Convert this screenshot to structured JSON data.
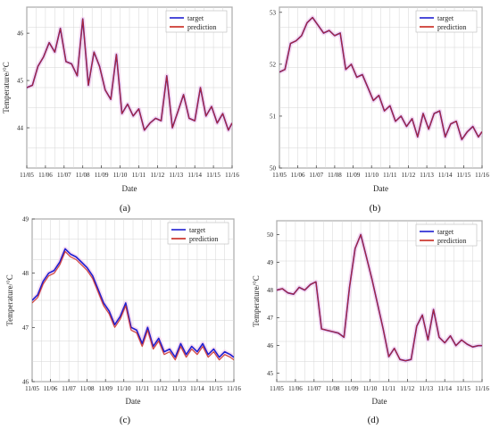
{
  "chart_data": [
    {
      "panel_label": "(a)",
      "type": "line",
      "xlabel": "Date",
      "ylabel": "Temperature/°C",
      "x_ticks": [
        "11/05",
        "11/06",
        "11/07",
        "11/08",
        "11/09",
        "11/10",
        "11/11",
        "11/12",
        "11/13",
        "11/14",
        "11/15",
        "11/16"
      ],
      "y_ticks": [
        44,
        45,
        46
      ],
      "ylim": [
        43.15,
        46.55
      ],
      "grid": true,
      "legend": {
        "position": "top-right",
        "entries": [
          "target",
          "prediction"
        ]
      },
      "series": [
        {
          "name": "target",
          "color": "#1f1fd0",
          "x": [
            0,
            0.3,
            0.6,
            0.9,
            1.2,
            1.5,
            1.8,
            2.1,
            2.4,
            2.7,
            3.0,
            3.3,
            3.6,
            3.9,
            4.2,
            4.5,
            4.8,
            5.1,
            5.4,
            5.7,
            6.0,
            6.3,
            6.6,
            6.9,
            7.2,
            7.5,
            7.8,
            8.1,
            8.4,
            8.7,
            9.0,
            9.3,
            9.6,
            9.9,
            10.2,
            10.5,
            10.8,
            11.0
          ],
          "y": [
            44.85,
            44.9,
            45.3,
            45.5,
            45.8,
            45.6,
            46.1,
            45.4,
            45.35,
            45.1,
            46.3,
            44.9,
            45.6,
            45.3,
            44.8,
            44.6,
            45.55,
            44.3,
            44.5,
            44.25,
            44.4,
            43.95,
            44.1,
            44.2,
            44.15,
            45.1,
            44.0,
            44.35,
            44.7,
            44.2,
            44.15,
            44.85,
            44.25,
            44.45,
            44.1,
            44.3,
            43.95,
            44.1
          ]
        },
        {
          "name": "prediction",
          "color": "#c8281e",
          "x": [
            0,
            0.3,
            0.6,
            0.9,
            1.2,
            1.5,
            1.8,
            2.1,
            2.4,
            2.7,
            3.0,
            3.3,
            3.6,
            3.9,
            4.2,
            4.5,
            4.8,
            5.1,
            5.4,
            5.7,
            6.0,
            6.3,
            6.6,
            6.9,
            7.2,
            7.5,
            7.8,
            8.1,
            8.4,
            8.7,
            9.0,
            9.3,
            9.6,
            9.9,
            10.2,
            10.5,
            10.8,
            11.0
          ],
          "y": [
            44.85,
            44.9,
            45.3,
            45.5,
            45.8,
            45.6,
            46.1,
            45.4,
            45.35,
            45.1,
            46.3,
            44.9,
            45.6,
            45.3,
            44.8,
            44.6,
            45.55,
            44.3,
            44.5,
            44.25,
            44.4,
            43.95,
            44.1,
            44.2,
            44.15,
            45.1,
            44.0,
            44.35,
            44.7,
            44.2,
            44.15,
            44.85,
            44.25,
            44.45,
            44.1,
            44.3,
            43.95,
            44.1
          ]
        }
      ]
    },
    {
      "panel_label": "(b)",
      "type": "line",
      "xlabel": "Date",
      "ylabel": "",
      "x_ticks": [
        "11/05",
        "11/06",
        "11/07",
        "11/08",
        "11/09",
        "11/10",
        "11/11",
        "11/12",
        "11/13",
        "11/14",
        "11/15",
        "11/16"
      ],
      "y_ticks": [
        50,
        51,
        52,
        53
      ],
      "ylim": [
        50.0,
        53.1
      ],
      "grid": true,
      "legend": {
        "position": "top-right",
        "entries": [
          "target",
          "prediction"
        ]
      },
      "series": [
        {
          "name": "target",
          "color": "#1f1fd0",
          "x": [
            0,
            0.3,
            0.6,
            0.9,
            1.2,
            1.5,
            1.8,
            2.1,
            2.4,
            2.7,
            3.0,
            3.3,
            3.6,
            3.9,
            4.2,
            4.5,
            4.8,
            5.1,
            5.4,
            5.7,
            6.0,
            6.3,
            6.6,
            6.9,
            7.2,
            7.5,
            7.8,
            8.1,
            8.4,
            8.7,
            9.0,
            9.3,
            9.6,
            9.9,
            10.2,
            10.5,
            10.8,
            11.0
          ],
          "y": [
            51.85,
            51.9,
            52.4,
            52.45,
            52.55,
            52.8,
            52.9,
            52.75,
            52.6,
            52.65,
            52.55,
            52.6,
            51.9,
            52.0,
            51.75,
            51.8,
            51.55,
            51.3,
            51.4,
            51.1,
            51.2,
            50.9,
            51.0,
            50.8,
            50.95,
            50.6,
            51.05,
            50.75,
            51.05,
            51.1,
            50.6,
            50.85,
            50.9,
            50.55,
            50.7,
            50.8,
            50.6,
            50.7
          ]
        },
        {
          "name": "prediction",
          "color": "#c8281e",
          "x": [
            0,
            0.3,
            0.6,
            0.9,
            1.2,
            1.5,
            1.8,
            2.1,
            2.4,
            2.7,
            3.0,
            3.3,
            3.6,
            3.9,
            4.2,
            4.5,
            4.8,
            5.1,
            5.4,
            5.7,
            6.0,
            6.3,
            6.6,
            6.9,
            7.2,
            7.5,
            7.8,
            8.1,
            8.4,
            8.7,
            9.0,
            9.3,
            9.6,
            9.9,
            10.2,
            10.5,
            10.8,
            11.0
          ],
          "y": [
            51.85,
            51.9,
            52.4,
            52.45,
            52.55,
            52.8,
            52.9,
            52.75,
            52.6,
            52.65,
            52.55,
            52.6,
            51.9,
            52.0,
            51.75,
            51.8,
            51.55,
            51.3,
            51.4,
            51.1,
            51.2,
            50.9,
            51.0,
            50.8,
            50.95,
            50.6,
            51.05,
            50.75,
            51.05,
            51.1,
            50.6,
            50.85,
            50.9,
            50.55,
            50.7,
            50.8,
            50.6,
            50.7
          ]
        }
      ]
    },
    {
      "panel_label": "(c)",
      "type": "line",
      "xlabel": "Date",
      "ylabel": "Temperature/°C",
      "x_ticks": [
        "11/05",
        "11/06",
        "11/07",
        "11/08",
        "11/09",
        "11/10",
        "11/11",
        "11/12",
        "11/13",
        "11/14",
        "11/15",
        "11/16"
      ],
      "y_ticks": [
        46,
        47,
        48,
        49
      ],
      "ylim": [
        46.0,
        49.0
      ],
      "grid": true,
      "legend": {
        "position": "top-right",
        "entries": [
          "target",
          "prediction"
        ]
      },
      "series": [
        {
          "name": "target",
          "color": "#1f1fd0",
          "x": [
            0,
            0.3,
            0.6,
            0.9,
            1.2,
            1.5,
            1.8,
            2.1,
            2.4,
            2.7,
            3.0,
            3.3,
            3.6,
            3.9,
            4.2,
            4.5,
            4.8,
            5.1,
            5.4,
            5.7,
            6.0,
            6.3,
            6.6,
            6.9,
            7.2,
            7.5,
            7.8,
            8.1,
            8.4,
            8.7,
            9.0,
            9.3,
            9.6,
            9.9,
            10.2,
            10.5,
            10.8,
            11.0
          ],
          "y": [
            47.5,
            47.6,
            47.85,
            48.0,
            48.05,
            48.2,
            48.45,
            48.35,
            48.3,
            48.2,
            48.1,
            47.95,
            47.7,
            47.45,
            47.3,
            47.05,
            47.2,
            47.45,
            47.0,
            46.95,
            46.7,
            47.0,
            46.65,
            46.8,
            46.55,
            46.6,
            46.45,
            46.7,
            46.5,
            46.65,
            46.55,
            46.7,
            46.5,
            46.6,
            46.45,
            46.55,
            46.5,
            46.45
          ]
        },
        {
          "name": "prediction",
          "color": "#c8281e",
          "x": [
            0,
            0.3,
            0.6,
            0.9,
            1.2,
            1.5,
            1.8,
            2.1,
            2.4,
            2.7,
            3.0,
            3.3,
            3.6,
            3.9,
            4.2,
            4.5,
            4.8,
            5.1,
            5.4,
            5.7,
            6.0,
            6.3,
            6.6,
            6.9,
            7.2,
            7.5,
            7.8,
            8.1,
            8.4,
            8.7,
            9.0,
            9.3,
            9.6,
            9.9,
            10.2,
            10.5,
            10.8,
            11.0
          ],
          "y": [
            47.45,
            47.55,
            47.8,
            47.95,
            48.0,
            48.15,
            48.4,
            48.3,
            48.25,
            48.15,
            48.05,
            47.9,
            47.65,
            47.4,
            47.25,
            47.0,
            47.15,
            47.4,
            46.95,
            46.9,
            46.65,
            46.95,
            46.6,
            46.75,
            46.5,
            46.55,
            46.4,
            46.65,
            46.45,
            46.6,
            46.5,
            46.65,
            46.45,
            46.55,
            46.4,
            46.5,
            46.45,
            46.4
          ]
        }
      ]
    },
    {
      "panel_label": "(d)",
      "type": "line",
      "xlabel": "Date",
      "ylabel": "Temperature/°C",
      "x_ticks": [
        "11/05",
        "11/06",
        "11/07",
        "11/08",
        "11/09",
        "11/10",
        "11/11",
        "11/12",
        "11/13",
        "11/14",
        "11/15",
        "11/16"
      ],
      "y_ticks": [
        45,
        46,
        47,
        48,
        49,
        50
      ],
      "ylim": [
        44.7,
        50.5
      ],
      "grid": true,
      "legend": {
        "position": "top-right",
        "entries": [
          "target",
          "prediction"
        ]
      },
      "series": [
        {
          "name": "target",
          "color": "#1f1fd0",
          "x": [
            0,
            0.3,
            0.6,
            0.9,
            1.2,
            1.5,
            1.8,
            2.1,
            2.4,
            2.7,
            3.0,
            3.3,
            3.6,
            3.9,
            4.2,
            4.5,
            4.8,
            5.1,
            5.4,
            5.7,
            6.0,
            6.3,
            6.6,
            6.9,
            7.2,
            7.5,
            7.8,
            8.1,
            8.4,
            8.7,
            9.0,
            9.3,
            9.6,
            9.9,
            10.2,
            10.5,
            10.8,
            11.0
          ],
          "y": [
            48.0,
            48.05,
            47.9,
            47.85,
            48.1,
            48.0,
            48.2,
            48.3,
            46.6,
            46.55,
            46.5,
            46.45,
            46.3,
            48.1,
            49.5,
            50.0,
            49.2,
            48.4,
            47.5,
            46.6,
            45.6,
            45.9,
            45.5,
            45.45,
            45.5,
            46.7,
            47.1,
            46.2,
            47.3,
            46.3,
            46.1,
            46.35,
            46.0,
            46.2,
            46.05,
            45.95,
            46.0,
            46.0
          ]
        },
        {
          "name": "prediction",
          "color": "#c8281e",
          "x": [
            0,
            0.3,
            0.6,
            0.9,
            1.2,
            1.5,
            1.8,
            2.1,
            2.4,
            2.7,
            3.0,
            3.3,
            3.6,
            3.9,
            4.2,
            4.5,
            4.8,
            5.1,
            5.4,
            5.7,
            6.0,
            6.3,
            6.6,
            6.9,
            7.2,
            7.5,
            7.8,
            8.1,
            8.4,
            8.7,
            9.0,
            9.3,
            9.6,
            9.9,
            10.2,
            10.5,
            10.8,
            11.0
          ],
          "y": [
            48.0,
            48.05,
            47.9,
            47.85,
            48.1,
            48.0,
            48.2,
            48.3,
            46.6,
            46.55,
            46.5,
            46.45,
            46.3,
            48.1,
            49.5,
            50.0,
            49.2,
            48.4,
            47.5,
            46.6,
            45.6,
            45.9,
            45.5,
            45.45,
            45.5,
            46.7,
            47.1,
            46.2,
            47.3,
            46.3,
            46.1,
            46.35,
            46.0,
            46.2,
            46.05,
            45.95,
            46.0,
            46.0
          ]
        }
      ]
    }
  ]
}
